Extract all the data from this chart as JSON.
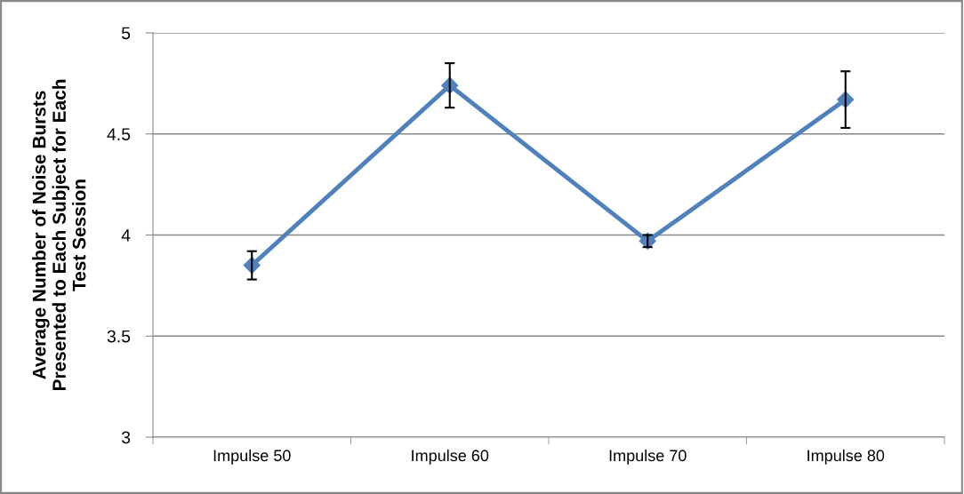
{
  "chart_data": {
    "type": "line",
    "ylabel": "Average Number of Noise Bursts\nPresented to Each Subject for Each\nTest Session",
    "categories": [
      "Impulse 50",
      "Impulse 60",
      "Impulse 70",
      "Impulse 80"
    ],
    "series": [
      {
        "color": "#4f81bd",
        "values": [
          3.85,
          4.74,
          3.97,
          4.67
        ],
        "errors": [
          0.07,
          0.11,
          0.03,
          0.14
        ]
      }
    ],
    "ylim": [
      3,
      5
    ],
    "yticks": [
      3,
      3.5,
      4,
      4.5,
      5
    ],
    "grid": "y",
    "marker": "diamond",
    "line_style": "solid"
  }
}
